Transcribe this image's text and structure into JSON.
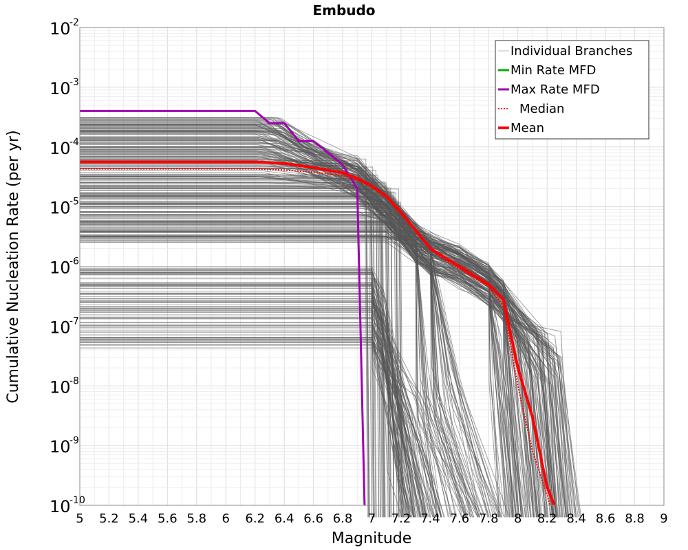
{
  "chart_data": {
    "type": "line",
    "title": "Embudo",
    "xlabel": "Magnitude",
    "ylabel": "Cumulative Nucleation Rate (per yr)",
    "xlim": [
      5,
      9
    ],
    "ylim": [
      1e-10,
      0.01
    ],
    "yscale": "log",
    "xticks": [
      "5",
      "5.2",
      "5.4",
      "5.6",
      "5.8",
      "6",
      "6.2",
      "6.4",
      "6.6",
      "6.8",
      "7",
      "7.2",
      "7.4",
      "7.6",
      "7.8",
      "8",
      "8.2",
      "8.4",
      "8.6",
      "8.8",
      "9"
    ],
    "yticks": [
      {
        "base": "10",
        "exp": "-10",
        "value": 1e-10
      },
      {
        "base": "10",
        "exp": "-9",
        "value": 1e-09
      },
      {
        "base": "10",
        "exp": "-8",
        "value": 1e-08
      },
      {
        "base": "10",
        "exp": "-7",
        "value": 1e-07
      },
      {
        "base": "10",
        "exp": "-6",
        "value": 1e-06
      },
      {
        "base": "10",
        "exp": "-5",
        "value": 1e-05
      },
      {
        "base": "10",
        "exp": "-4",
        "value": 0.0001
      },
      {
        "base": "10",
        "exp": "-3",
        "value": 0.001
      },
      {
        "base": "10",
        "exp": "-2",
        "value": 0.01
      }
    ],
    "legend_position": "top-right",
    "legend": [
      {
        "label": "Individual Branches",
        "color": "#b8b8b8",
        "style": "solid-thin"
      },
      {
        "label": "Min Rate MFD",
        "color": "#00b000",
        "style": "solid"
      },
      {
        "label": "Max Rate MFD",
        "color": "#a000b0",
        "style": "solid"
      },
      {
        "label": "Median",
        "color": "#ff0000",
        "style": "dotted"
      },
      {
        "label": "Mean",
        "color": "#ff0000",
        "style": "solid-thick"
      }
    ],
    "branch_color": "#555555",
    "branch_count": 320,
    "series": [
      {
        "name": "Max Rate MFD",
        "color": "#a000b0",
        "x": [
          5.0,
          6.2,
          6.3,
          6.4,
          6.5,
          6.6,
          6.7,
          6.8,
          6.9,
          6.95
        ],
        "y": [
          0.0004,
          0.0004,
          0.00025,
          0.00025,
          0.000125,
          0.000125,
          8e-05,
          5e-05,
          2e-05,
          1e-10
        ]
      },
      {
        "name": "Mean",
        "color": "#ff0000",
        "x": [
          5.0,
          6.2,
          6.4,
          6.6,
          6.8,
          6.9,
          7.0,
          7.1,
          7.2,
          7.3,
          7.4,
          7.5,
          7.6,
          7.7,
          7.8,
          7.9,
          8.0,
          8.1,
          8.2,
          8.25
        ],
        "y": [
          5.6e-05,
          5.6e-05,
          5.3e-05,
          4.5e-05,
          3.7e-05,
          3e-05,
          2.2e-05,
          1.5e-05,
          8e-06,
          4e-06,
          2e-06,
          1.4e-06,
          1e-06,
          7e-07,
          5e-07,
          2.8e-07,
          2e-08,
          3e-09,
          2e-10,
          1e-10
        ]
      },
      {
        "name": "Median",
        "color": "#ff0000",
        "x": [
          5.0,
          6.2,
          6.4,
          6.6,
          6.8,
          6.9,
          7.0,
          7.1,
          7.2,
          7.3,
          7.4,
          7.5,
          7.6,
          7.7,
          7.8,
          7.9,
          8.0,
          8.1,
          8.2,
          8.22
        ],
        "y": [
          4.3e-05,
          4.3e-05,
          4.1e-05,
          3.8e-05,
          3.3e-05,
          2.8e-05,
          2.1e-05,
          1.4e-05,
          7.5e-06,
          3.8e-06,
          1.9e-06,
          1.3e-06,
          9e-07,
          6.5e-07,
          4.5e-07,
          2.2e-07,
          1e-08,
          8e-10,
          1.5e-10,
          1e-10
        ]
      }
    ]
  }
}
